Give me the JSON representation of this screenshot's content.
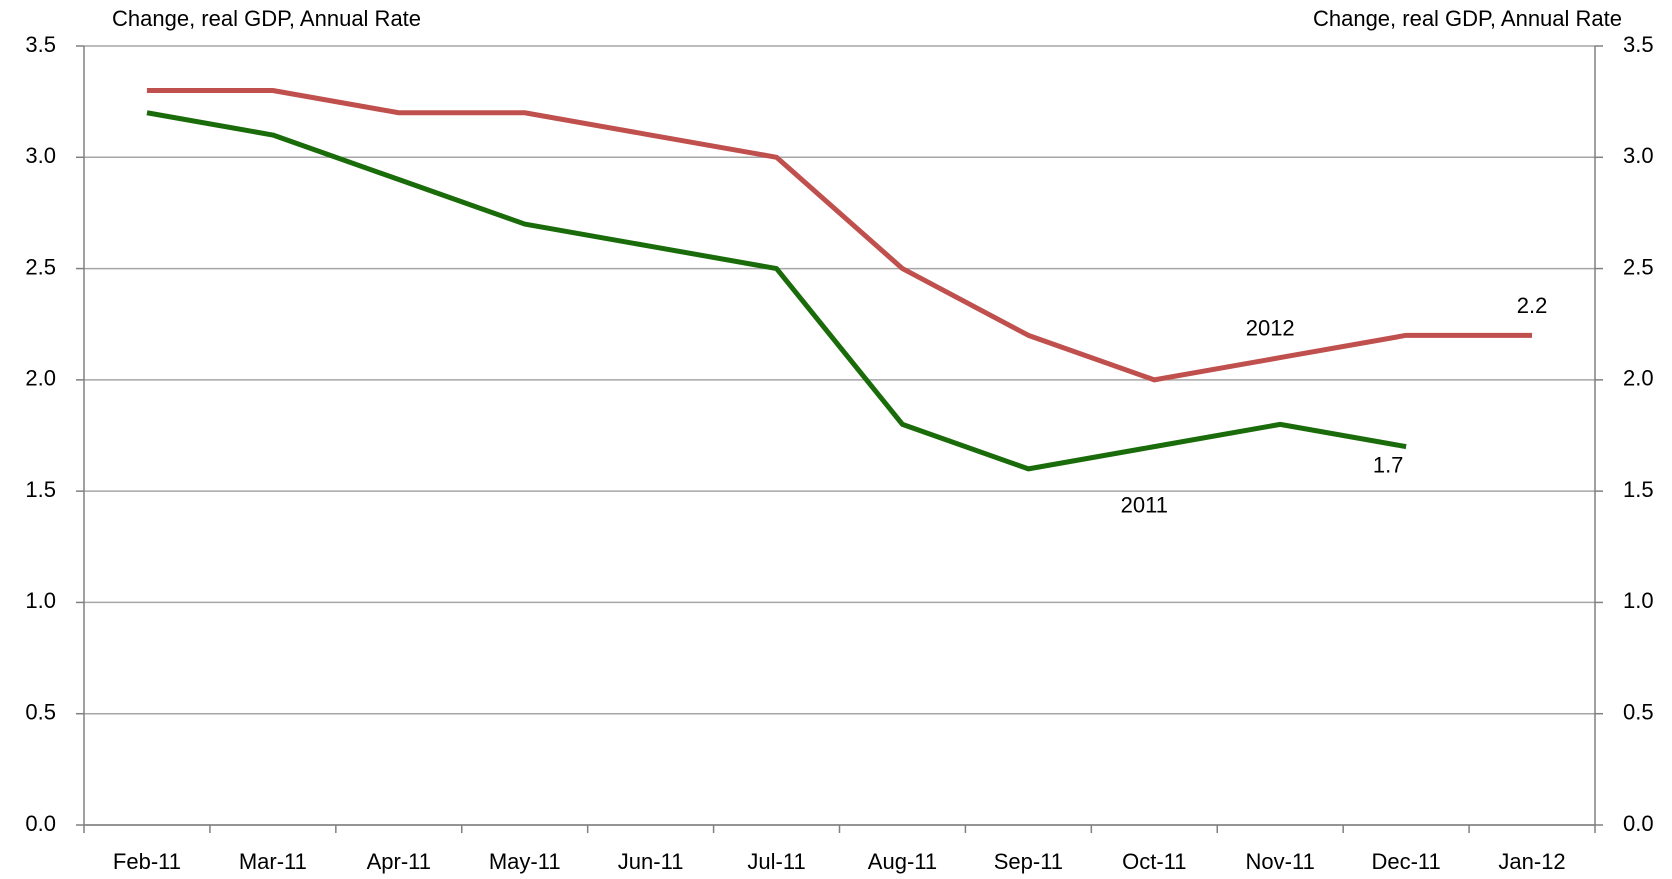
{
  "chart_data": {
    "type": "line",
    "y_label": "Change, real GDP, Annual Rate",
    "y2_label": "Change, real GDP, Annual Rate",
    "categories": [
      "Feb-11",
      "Mar-11",
      "Apr-11",
      "May-11",
      "Jun-11",
      "Jul-11",
      "Aug-11",
      "Sep-11",
      "Oct-11",
      "Nov-11",
      "Dec-11",
      "Jan-12"
    ],
    "series": [
      {
        "name": "2012",
        "color": "#c0504d",
        "values": [
          3.3,
          3.3,
          3.2,
          3.2,
          3.1,
          3.0,
          2.5,
          2.2,
          2.0,
          2.1,
          2.2,
          2.2
        ],
        "value_labels": [
          null,
          null,
          null,
          null,
          null,
          null,
          null,
          null,
          null,
          null,
          null,
          "2.2"
        ]
      },
      {
        "name": "2011",
        "color": "#1a6b0a",
        "values": [
          3.2,
          3.1,
          2.9,
          2.7,
          2.6,
          2.5,
          1.8,
          1.6,
          1.7,
          1.8,
          1.7,
          null
        ],
        "value_labels": [
          null,
          null,
          null,
          null,
          null,
          null,
          null,
          null,
          null,
          null,
          "1.7",
          null
        ]
      }
    ],
    "ylim": [
      0,
      3.5
    ],
    "yticks": [
      {
        "value": 0,
        "label": "0.0"
      },
      {
        "value": 0.5,
        "label": "0.5"
      },
      {
        "value": 1,
        "label": "1.0"
      },
      {
        "value": 1.5,
        "label": "1.5"
      },
      {
        "value": 2,
        "label": "2.0"
      },
      {
        "value": 2.5,
        "label": "2.5"
      },
      {
        "value": 3,
        "label": "3.0"
      },
      {
        "value": 3.5,
        "label": "3.5"
      }
    ],
    "y2lim": [
      0,
      3.5
    ],
    "y2ticks": [
      {
        "value": 0,
        "label": "0.0"
      },
      {
        "value": 0.5,
        "label": "0.5"
      },
      {
        "value": 1,
        "label": "1.0"
      },
      {
        "value": 1.5,
        "label": "1.5"
      },
      {
        "value": 2,
        "label": "2.0"
      },
      {
        "value": 2.5,
        "label": "2.5"
      },
      {
        "value": 3,
        "label": "3.0"
      },
      {
        "value": 3.5,
        "label": "3.5"
      }
    ],
    "grid": true
  }
}
